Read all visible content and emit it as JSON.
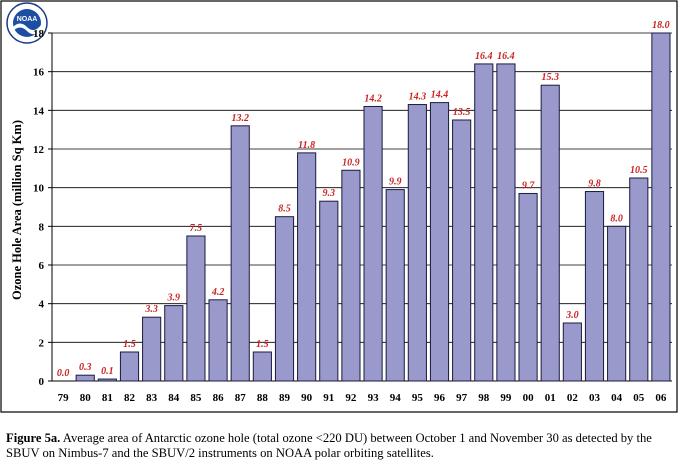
{
  "logo": {
    "text": "NOAA",
    "icon": "noaa-logo-icon"
  },
  "chart_data": {
    "type": "bar",
    "ylabel": "Ozone Hole Area (million Sq Km)",
    "xlabel": "",
    "ylim": [
      0,
      18
    ],
    "yticks": [
      0,
      2,
      4,
      6,
      8,
      10,
      12,
      14,
      16,
      18
    ],
    "grid": true,
    "categories": [
      "79",
      "80",
      "81",
      "82",
      "83",
      "84",
      "85",
      "86",
      "87",
      "88",
      "89",
      "90",
      "91",
      "92",
      "93",
      "94",
      "95",
      "96",
      "97",
      "98",
      "99",
      "00",
      "01",
      "02",
      "03",
      "04",
      "05",
      "06"
    ],
    "values": [
      0.0,
      0.3,
      0.1,
      1.5,
      3.3,
      3.9,
      7.5,
      4.2,
      13.2,
      1.5,
      8.5,
      11.8,
      9.3,
      10.9,
      14.2,
      9.9,
      14.3,
      14.4,
      13.5,
      16.4,
      16.4,
      9.7,
      15.3,
      3.0,
      9.8,
      8.0,
      10.5,
      18.0
    ],
    "value_labels": [
      "0.0",
      "0.3",
      "0.1",
      "1.5",
      "3.3",
      "3.9",
      "7.5",
      "4.2",
      "13.2",
      "1.5",
      "8.5",
      "11.8",
      "9.3",
      "10.9",
      "14.2",
      "9.9",
      "14.3",
      "14.4",
      "13.5",
      "16.4",
      "16.4",
      "9.7",
      "15.3",
      "3.0",
      "9.8",
      "8.0",
      "10.5",
      "18.0"
    ],
    "colors": {
      "bar_fill": "#9999cc",
      "bar_stroke": "#1a1a40",
      "label": "#cc2222"
    }
  },
  "caption": {
    "label": "Figure 5a.",
    "text": "  Average area of Antarctic ozone hole (total ozone <220 DU) between October 1 and November 30 as detected by the SBUV on Nimbus-7 and the SBUV/2 instruments on NOAA polar orbiting satellites."
  }
}
